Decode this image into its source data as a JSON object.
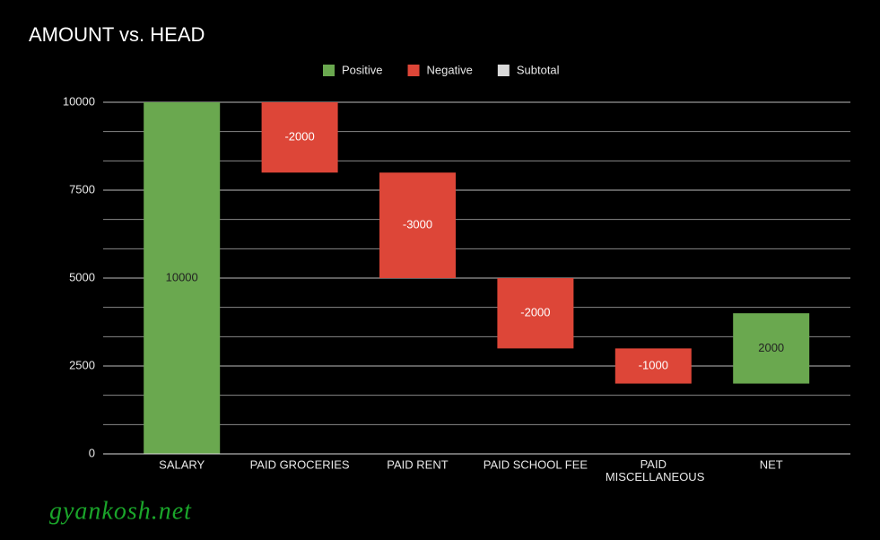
{
  "chart_data": {
    "type": "waterfall",
    "title": "AMOUNT vs. HEAD",
    "categories": [
      "SALARY",
      "PAID GROCERIES",
      "PAID RENT",
      "PAID SCHOOL FEE",
      "PAID MISCELLANEOUS",
      "NET"
    ],
    "values": [
      10000,
      -2000,
      -3000,
      -2000,
      -1000,
      2000
    ],
    "legend": [
      {
        "name": "Positive",
        "color": "#6aa84f"
      },
      {
        "name": "Negative",
        "color": "#dd4638"
      },
      {
        "name": "Subtotal",
        "color": "#d9d9d9"
      }
    ],
    "ylim": [
      0,
      10000
    ],
    "yticks": [
      0,
      2500,
      5000,
      7500,
      10000
    ],
    "grid": true
  },
  "watermark": "gyankosh.net"
}
